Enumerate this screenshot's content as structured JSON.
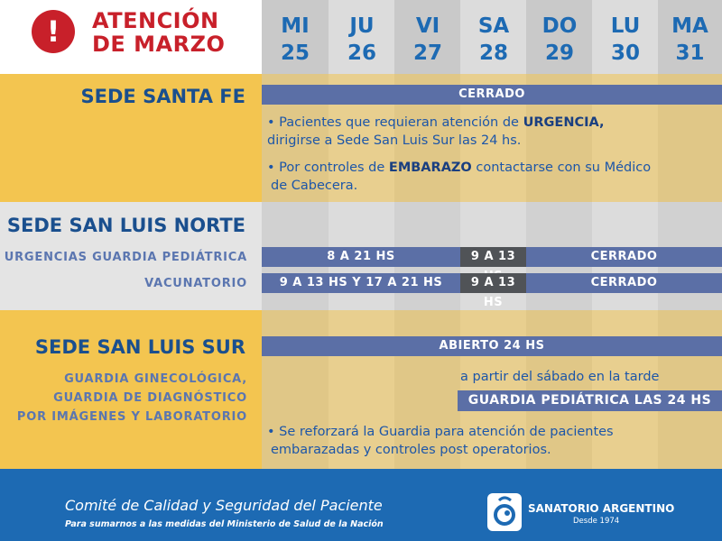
{
  "header": {
    "alert_symbol": "!",
    "title_line1": "ATENCIÓN",
    "title_line2": "DE MARZO",
    "days": [
      {
        "abbr": "MI",
        "num": "25"
      },
      {
        "abbr": "JU",
        "num": "26"
      },
      {
        "abbr": "VI",
        "num": "27"
      },
      {
        "abbr": "SA",
        "num": "28"
      },
      {
        "abbr": "DO",
        "num": "29"
      },
      {
        "abbr": "LU",
        "num": "30"
      },
      {
        "abbr": "MA",
        "num": "31"
      }
    ]
  },
  "santa_fe": {
    "title": "SEDE SANTA FE",
    "status": "CERRADO",
    "note1_pre": "• Pacientes que requieran atención de ",
    "note1_bold": "URGENCIA,",
    "note1_post": "dirigirse a Sede San Luis Sur las 24 hs.",
    "note2_pre": "• Por controles de ",
    "note2_bold": "EMBARAZO",
    "note2_mid": " contactarse con su Médico",
    "note2_post": "de Cabecera."
  },
  "san_luis_norte": {
    "title": "SEDE SAN LUIS NORTE",
    "row1_label": "URGENCIAS GUARDIA PEDIÁTRICA",
    "row1_weekday": "8 A 21 HS",
    "row1_saturday": "9 A 13 HS",
    "row1_closed": "CERRADO",
    "row2_label": "VACUNATORIO",
    "row2_weekday": "9 A 13 HS Y 17 A 21 HS",
    "row2_saturday": "9 A 13 HS",
    "row2_closed": "CERRADO"
  },
  "san_luis_sur": {
    "title": "SEDE SAN LUIS SUR",
    "status": "ABIERTO 24 HS",
    "label_line1": "GUARDIA GINECOLÓGICA,",
    "label_line2": "GUARDIA DE DIAGNÓSTICO",
    "label_line3": "POR IMÁGENES Y LABORATORIO",
    "from_text": "a partir del sábado en la tarde",
    "pediatric_bar": "GUARDIA PEDIÁTRICA LAS 24 HS",
    "note_line1": "• Se reforzará la Guardia para atención de pacientes",
    "note_line2": "embarazadas y controles post operatorios."
  },
  "footer": {
    "main": "Comité de Calidad y Seguridad del Paciente",
    "sub": "Para sumarnos a las medidas del Ministerio de Salud de la Nación",
    "logo_name": "SANATORIO ARGENTINO",
    "logo_since": "Desde 1974"
  },
  "colors": {
    "red": "#c8202a",
    "blue": "#1d6ab3",
    "gold": "#f3c550",
    "bar": "#5b6fa6",
    "bar_dark": "#505357"
  }
}
